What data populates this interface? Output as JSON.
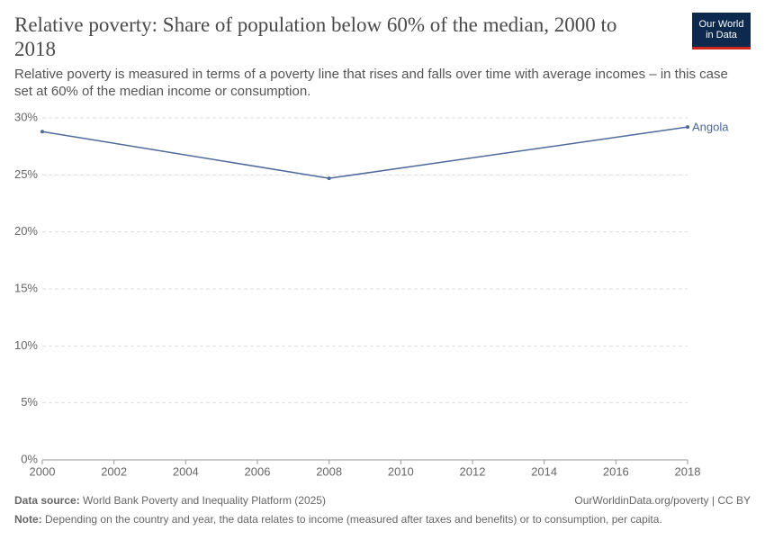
{
  "chart_data": {
    "type": "line",
    "title": "Relative poverty: Share of population below 60% of the median, 2000 to 2018",
    "subtitle": "Relative poverty is measured in terms of a poverty line that rises and falls over time with average incomes – in this case set at 60% of the median income or consumption.",
    "logo": [
      "Our World",
      "in Data"
    ],
    "x": [
      2000,
      2008,
      2018
    ],
    "series": [
      {
        "name": "Angola",
        "color": "#4c6a9c",
        "values": [
          28.8,
          24.7,
          29.2
        ]
      }
    ],
    "xlim": [
      2000,
      2018
    ],
    "xticks": [
      2000,
      2002,
      2004,
      2006,
      2008,
      2010,
      2012,
      2014,
      2016,
      2018
    ],
    "ylim": [
      0,
      30
    ],
    "yticks": [
      {
        "value": 0,
        "label": "0%"
      },
      {
        "value": 5,
        "label": "5%"
      },
      {
        "value": 10,
        "label": "10%"
      },
      {
        "value": 15,
        "label": "15%"
      },
      {
        "value": 20,
        "label": "20%"
      },
      {
        "value": 25,
        "label": "25%"
      },
      {
        "value": 30,
        "label": "30%"
      }
    ],
    "grid": true,
    "source_label": "Data source:",
    "source": "World Bank Poverty and Inequality Platform (2025)",
    "url": "OurWorldinData.org/poverty | CC BY",
    "note_label": "Note:",
    "note": "Depending on the country and year, the data relates to income (measured after taxes and benefits) or to consumption, per capita."
  }
}
